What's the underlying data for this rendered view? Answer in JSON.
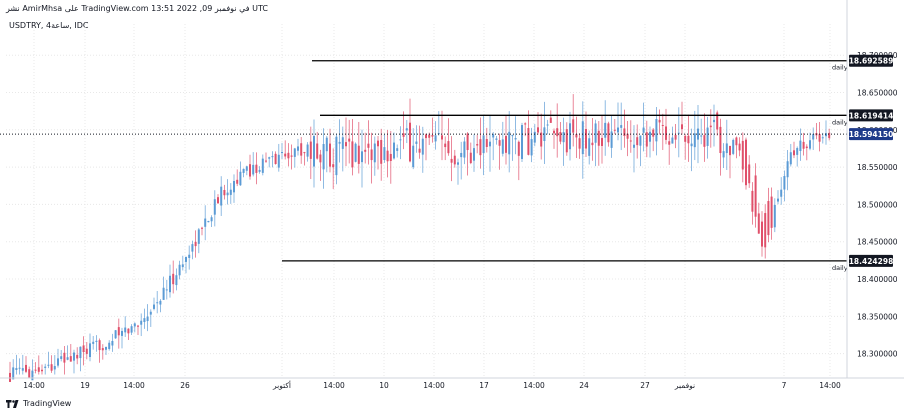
{
  "header": {
    "text": "نشر AmirMhsa على TradingView.com في نوفمبر 09, 2022 13:51 UTC"
  },
  "symbol": {
    "text": "USDTRY, 4ساعة, IDC"
  },
  "footer": {
    "brand": "TradingView"
  },
  "colors": {
    "bull": "#5b9bd5",
    "bear": "#e0506a",
    "grid": "#e8e8e8",
    "level_line": "#000000",
    "price_badge": "#1e3a8a",
    "level_badge": "#131722"
  },
  "chart_data": {
    "type": "candlestick",
    "ylim": [
      18.27,
      18.715
    ],
    "y_ticks": [
      "18.700000",
      "18.650000",
      "18.600000",
      "18.550000",
      "18.500000",
      "18.450000",
      "18.400000",
      "18.350000",
      "18.300000"
    ],
    "x_ticks": [
      "14:00",
      "19",
      "14:00",
      "26",
      "أكتوبر",
      "14:00",
      "10",
      "14:00",
      "17",
      "14:00",
      "24",
      "27",
      "نوفمبر",
      "7",
      "14:00"
    ],
    "current_price": "18.594150",
    "levels": [
      {
        "value": 18.692589,
        "label_text": "18.692589",
        "tag": "daily"
      },
      {
        "value": 18.619414,
        "label_text": "18.619414",
        "tag": "daily"
      },
      {
        "value": 18.424298,
        "label_text": "18.424298",
        "tag": "daily"
      }
    ],
    "trend": [
      [
        0,
        18.272
      ],
      [
        0.05,
        18.285
      ],
      [
        0.1,
        18.305
      ],
      [
        0.15,
        18.335
      ],
      [
        0.18,
        18.37
      ],
      [
        0.21,
        18.42
      ],
      [
        0.24,
        18.48
      ],
      [
        0.26,
        18.52
      ],
      [
        0.29,
        18.545
      ],
      [
        0.31,
        18.555
      ],
      [
        0.33,
        18.565
      ],
      [
        0.36,
        18.575
      ],
      [
        0.42,
        18.57
      ],
      [
        0.48,
        18.58
      ],
      [
        0.55,
        18.575
      ],
      [
        0.62,
        18.585
      ],
      [
        0.7,
        18.59
      ],
      [
        0.78,
        18.6
      ],
      [
        0.85,
        18.595
      ],
      [
        0.88,
        18.585
      ],
      [
        0.9,
        18.54
      ],
      [
        0.92,
        18.45
      ],
      [
        0.935,
        18.5
      ],
      [
        0.95,
        18.565
      ],
      [
        0.97,
        18.585
      ],
      [
        1.0,
        18.594
      ]
    ]
  }
}
